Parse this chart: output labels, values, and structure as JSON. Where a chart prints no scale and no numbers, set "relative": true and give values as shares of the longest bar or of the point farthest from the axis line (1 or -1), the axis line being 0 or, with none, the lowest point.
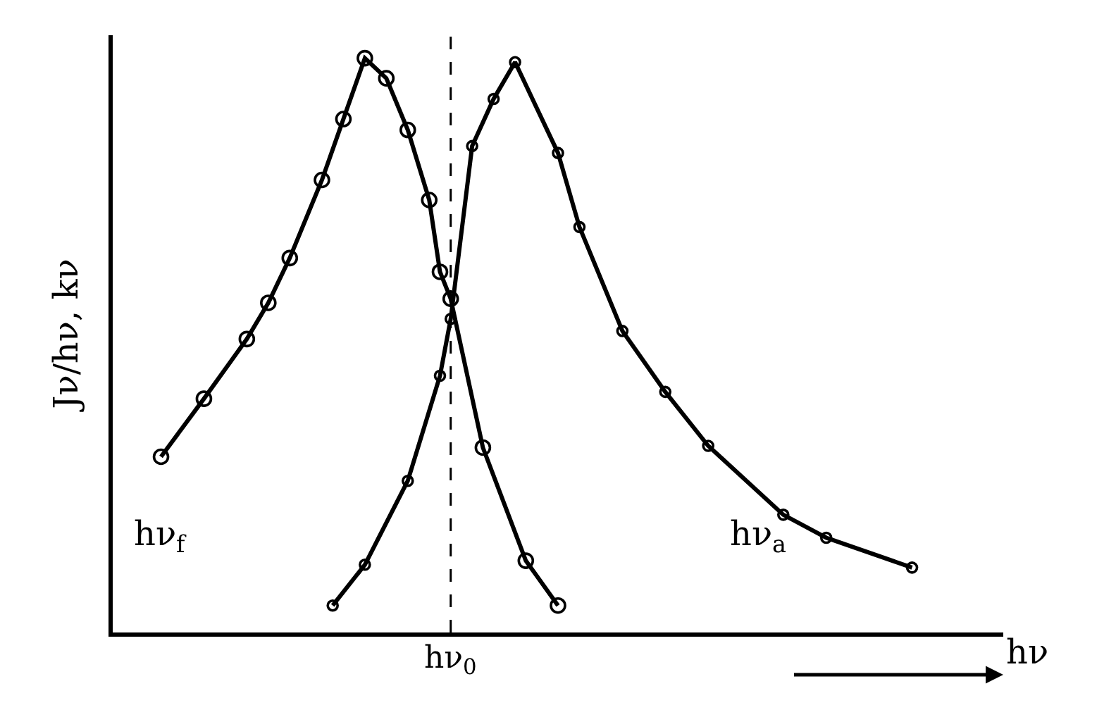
{
  "chart_data": {
    "type": "line",
    "relative": true,
    "ylabel": "Jν/hν, kν",
    "xlabel": "hν",
    "categories": [
      null,
      null,
      null,
      null,
      null,
      null,
      null,
      null,
      null,
      null,
      null,
      null,
      null,
      null,
      null,
      null,
      null,
      null,
      null,
      null,
      null,
      null,
      null,
      null,
      null,
      null,
      null,
      null,
      null,
      null,
      null,
      null,
      null,
      null,
      null,
      null,
      null,
      null,
      null,
      null,
      null,
      null,
      null,
      null,
      null,
      null,
      null,
      null,
      null,
      null,
      null,
      null,
      null,
      null,
      null,
      null,
      null,
      null,
      null,
      null,
      null,
      null,
      null,
      null,
      null,
      null,
      null,
      null,
      null,
      null,
      null,
      null,
      null,
      null,
      null,
      null,
      null,
      null,
      null,
      null,
      null,
      null,
      null
    ],
    "series": [
      {
        "color": "#000000",
        "values": [
          null,
          null,
          null,
          null,
          0.306,
          null,
          null,
          null,
          0.407,
          null,
          null,
          null,
          0.511,
          null,
          0.574,
          null,
          0.652,
          null,
          null,
          0.788,
          null,
          0.894,
          null,
          1.0,
          null,
          0.965,
          null,
          0.875,
          null,
          0.753,
          0.628,
          0.581,
          null,
          null,
          0.322,
          null,
          null,
          null,
          0.125,
          null,
          null,
          0.047,
          null,
          null,
          null,
          null,
          null,
          null,
          null,
          null,
          null,
          null,
          null,
          null,
          null,
          null,
          null,
          null,
          null,
          null,
          null,
          null,
          null,
          null,
          null,
          null,
          null,
          null,
          null,
          null,
          null,
          null,
          null,
          null,
          null,
          null,
          null,
          null,
          null,
          null,
          null,
          null,
          null
        ]
      },
      {
        "color": "#000000",
        "values": [
          null,
          null,
          null,
          null,
          null,
          null,
          null,
          null,
          null,
          null,
          null,
          null,
          null,
          null,
          null,
          null,
          null,
          null,
          null,
          null,
          0.047,
          null,
          null,
          0.118,
          null,
          null,
          null,
          0.264,
          null,
          null,
          0.447,
          0.546,
          null,
          0.847,
          null,
          0.929,
          null,
          0.993,
          null,
          null,
          null,
          0.835,
          null,
          0.706,
          null,
          null,
          null,
          0.525,
          null,
          null,
          null,
          0.419,
          null,
          null,
          null,
          0.325,
          null,
          null,
          null,
          null,
          null,
          null,
          0.205,
          null,
          null,
          null,
          0.165,
          null,
          null,
          null,
          null,
          null,
          null,
          null,
          0.113,
          null,
          null,
          null,
          null,
          null,
          null,
          null,
          null
        ]
      }
    ],
    "marker": "circle",
    "line_style": "solid",
    "legend": false,
    "annotations": [
      "hν$_{f}$",
      "hν$_{a}$",
      "hν$_{0}$"
    ]
  }
}
